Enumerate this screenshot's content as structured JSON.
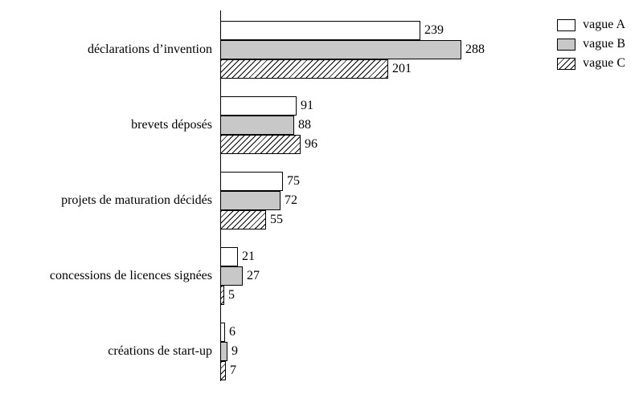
{
  "chart_data": {
    "type": "bar",
    "orientation": "horizontal",
    "title": "",
    "xlabel": "",
    "ylabel": "",
    "xlim": [
      0,
      300
    ],
    "grid": false,
    "legend_position": "top-right",
    "categories": [
      "déclarations d’invention",
      "brevets déposés",
      "projets de maturation décidés",
      "concessions de licences signées",
      "créations de start-up"
    ],
    "series": [
      {
        "name": "vague A",
        "style": "white",
        "values": [
          239,
          91,
          75,
          21,
          6
        ]
      },
      {
        "name": "vague B",
        "style": "gray",
        "values": [
          288,
          88,
          72,
          27,
          9
        ]
      },
      {
        "name": "vague C",
        "style": "hatched",
        "values": [
          201,
          96,
          55,
          5,
          7
        ]
      }
    ],
    "colors": {
      "bar_white": "#ffffff",
      "bar_gray": "#c8c8c8",
      "bar_border": "#000000",
      "axis": "#000000"
    }
  }
}
